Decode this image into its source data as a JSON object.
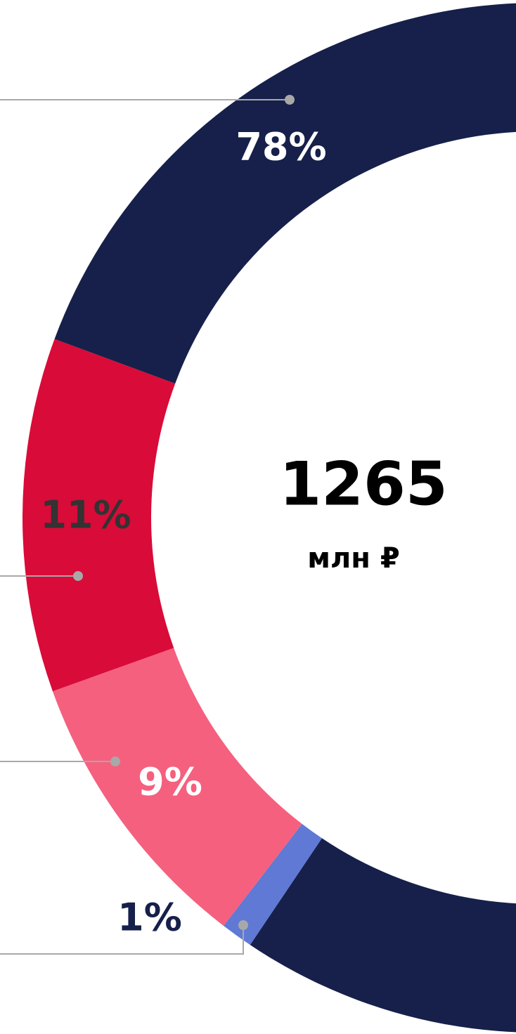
{
  "chart_data": {
    "type": "donut",
    "values": [
      78,
      1,
      9,
      11
    ],
    "value_labels": [
      "78%",
      "1%",
      "9%",
      "11%"
    ],
    "colors": [
      "#16204a",
      "#5f79d4",
      "#f5607e",
      "#d90b38"
    ],
    "center_value": 1265,
    "center_label": "млн ₽"
  }
}
